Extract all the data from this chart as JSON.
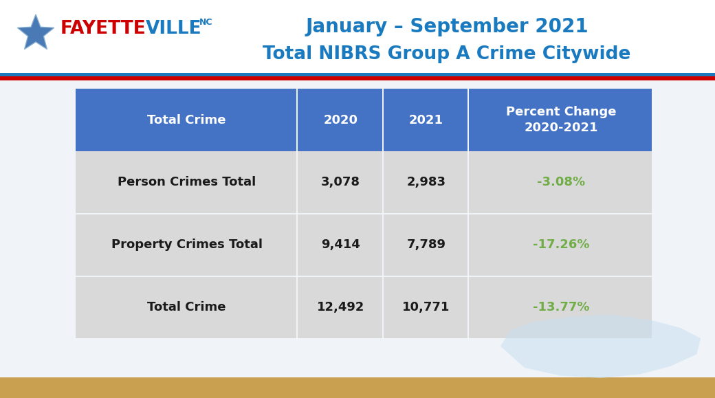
{
  "title_line1": "January – September 2021",
  "title_line2": "Total NIBRS Group A Crime Citywide",
  "title_color": "#1a7abf",
  "bg_color": "#f0f4f8",
  "header_bg": "#4472c4",
  "header_text_color": "#ffffff",
  "row_bg": "#d9d9d9",
  "green_color": "#70ad47",
  "black_color": "#1a1a1a",
  "fayetteville_red": "#cc0000",
  "fayetteville_blue": "#1a7abf",
  "star_color": "#4a7ab5",
  "stripe_blue": "#1a7abf",
  "stripe_red": "#cc0000",
  "col_headers": [
    "Total Crime",
    "2020",
    "2021",
    "Percent Change\n2020-2021"
  ],
  "rows": [
    [
      "Person Crimes Total",
      "3,078",
      "2,983",
      "-3.08%"
    ],
    [
      "Property Crimes Total",
      "9,414",
      "7,789",
      "-17.26%"
    ],
    [
      "Total Crime",
      "12,492",
      "10,771",
      "-13.77%"
    ]
  ]
}
